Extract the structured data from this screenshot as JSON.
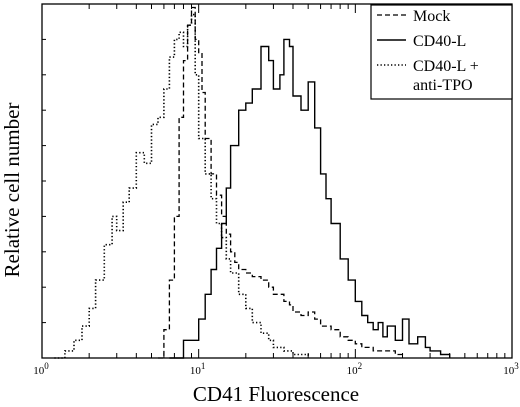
{
  "chart_data": {
    "type": "line",
    "xlabel": "CD41 Fluorescence",
    "ylabel": "Relative cell number",
    "xscale": "log",
    "xlim": [
      1,
      1000
    ],
    "ylim": [
      0,
      100
    ],
    "x_ticks": [
      {
        "base": "10",
        "exp": "0",
        "value": 1
      },
      {
        "base": "10",
        "exp": "1",
        "value": 10
      },
      {
        "base": "10",
        "exp": "2",
        "value": 100
      },
      {
        "base": "10",
        "exp": "3",
        "value": 1000
      }
    ],
    "legend_position": "top-right",
    "series": [
      {
        "name": "Mock",
        "style": "dashed",
        "x": [
          5.5,
          6.0,
          6.5,
          7.0,
          7.5,
          8.0,
          8.5,
          9.0,
          9.5,
          10,
          10.5,
          11,
          12,
          13,
          14,
          15,
          16,
          17,
          18,
          20,
          22,
          25,
          28,
          30,
          33,
          35,
          38,
          40,
          45,
          50,
          55,
          60,
          70,
          80,
          90,
          100,
          110,
          120,
          130,
          150,
          180,
          200
        ],
        "y": [
          0,
          8,
          22,
          40,
          68,
          84,
          94,
          99,
          90,
          86,
          75,
          62,
          52,
          46,
          40,
          35,
          30,
          27,
          25,
          24,
          23,
          22,
          20,
          18,
          18,
          16,
          15,
          13,
          12,
          13,
          11,
          9,
          8,
          6,
          5,
          4,
          3,
          3,
          2,
          2,
          1,
          0
        ]
      },
      {
        "name": "CD40-L",
        "style": "solid",
        "x": [
          6.5,
          8,
          10,
          11,
          12,
          13,
          14,
          15,
          16,
          18,
          20,
          22,
          25,
          28,
          30,
          33,
          35,
          38,
          40,
          45,
          50,
          55,
          60,
          65,
          70,
          80,
          90,
          100,
          110,
          120,
          130,
          140,
          150,
          160,
          180,
          200,
          220,
          250,
          280,
          300,
          350,
          400
        ],
        "y": [
          0,
          5,
          11,
          18,
          25,
          31,
          38,
          48,
          60,
          70,
          72,
          76,
          88,
          84,
          76,
          80,
          90,
          88,
          74,
          70,
          78,
          65,
          52,
          45,
          38,
          28,
          22,
          16,
          12,
          10,
          8,
          10,
          6,
          9,
          5,
          11,
          4,
          6,
          3,
          2,
          1,
          0
        ]
      },
      {
        "name": "CD40-L + anti-TPO",
        "style": "dotted",
        "x": [
          1.2,
          1.4,
          1.6,
          1.8,
          2.0,
          2.2,
          2.5,
          2.8,
          3.0,
          3.3,
          3.6,
          4.0,
          4.5,
          5.0,
          5.5,
          6.0,
          6.5,
          7.0,
          7.5,
          8.0,
          8.5,
          9.0,
          9.5,
          10,
          11,
          12,
          13,
          14,
          15,
          16,
          18,
          20,
          22,
          25,
          28,
          30,
          35,
          40,
          50
        ],
        "y": [
          0,
          2,
          5,
          9,
          14,
          22,
          32,
          40,
          36,
          44,
          48,
          58,
          55,
          66,
          68,
          76,
          85,
          90,
          92,
          88,
          94,
          97,
          80,
          62,
          52,
          45,
          38,
          34,
          28,
          24,
          18,
          14,
          10,
          7,
          5,
          3,
          2,
          1,
          0
        ]
      }
    ]
  }
}
